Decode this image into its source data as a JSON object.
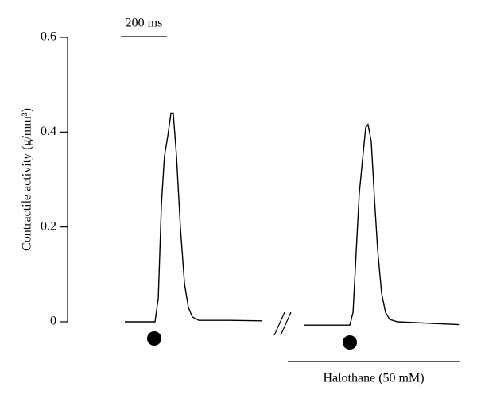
{
  "chart_data": {
    "type": "line",
    "y_label": "Contractile activity (g/mm³)",
    "scale_bar": "200 ms",
    "annotation": "Halothane (50 mM)",
    "ylim": [
      0,
      0.6
    ],
    "yticks": [
      0,
      0.2,
      0.4,
      0.6
    ],
    "series": [
      {
        "color": "#000000",
        "x": [
          0,
          131,
          145,
          159,
          172,
          186,
          200,
          210,
          224,
          241,
          259,
          276,
          293,
          321,
          459,
          597
        ],
        "values": [
          0,
          0,
          0.05,
          0.25,
          0.35,
          0.39,
          0.44,
          0.44,
          0.35,
          0.2,
          0.08,
          0.03,
          0.01,
          0.003,
          0.003,
          0.002
        ]
      },
      {
        "color": "#000000",
        "x": [
          0,
          200,
          214,
          228,
          241,
          255,
          269,
          279,
          293,
          307,
          321,
          338,
          355,
          373,
          407,
          673
        ],
        "values": [
          -0.007,
          -0.007,
          0.02,
          0.15,
          0.27,
          0.34,
          0.41,
          0.416,
          0.38,
          0.26,
          0.15,
          0.06,
          0.02,
          0.005,
          0,
          -0.006
        ]
      }
    ]
  }
}
